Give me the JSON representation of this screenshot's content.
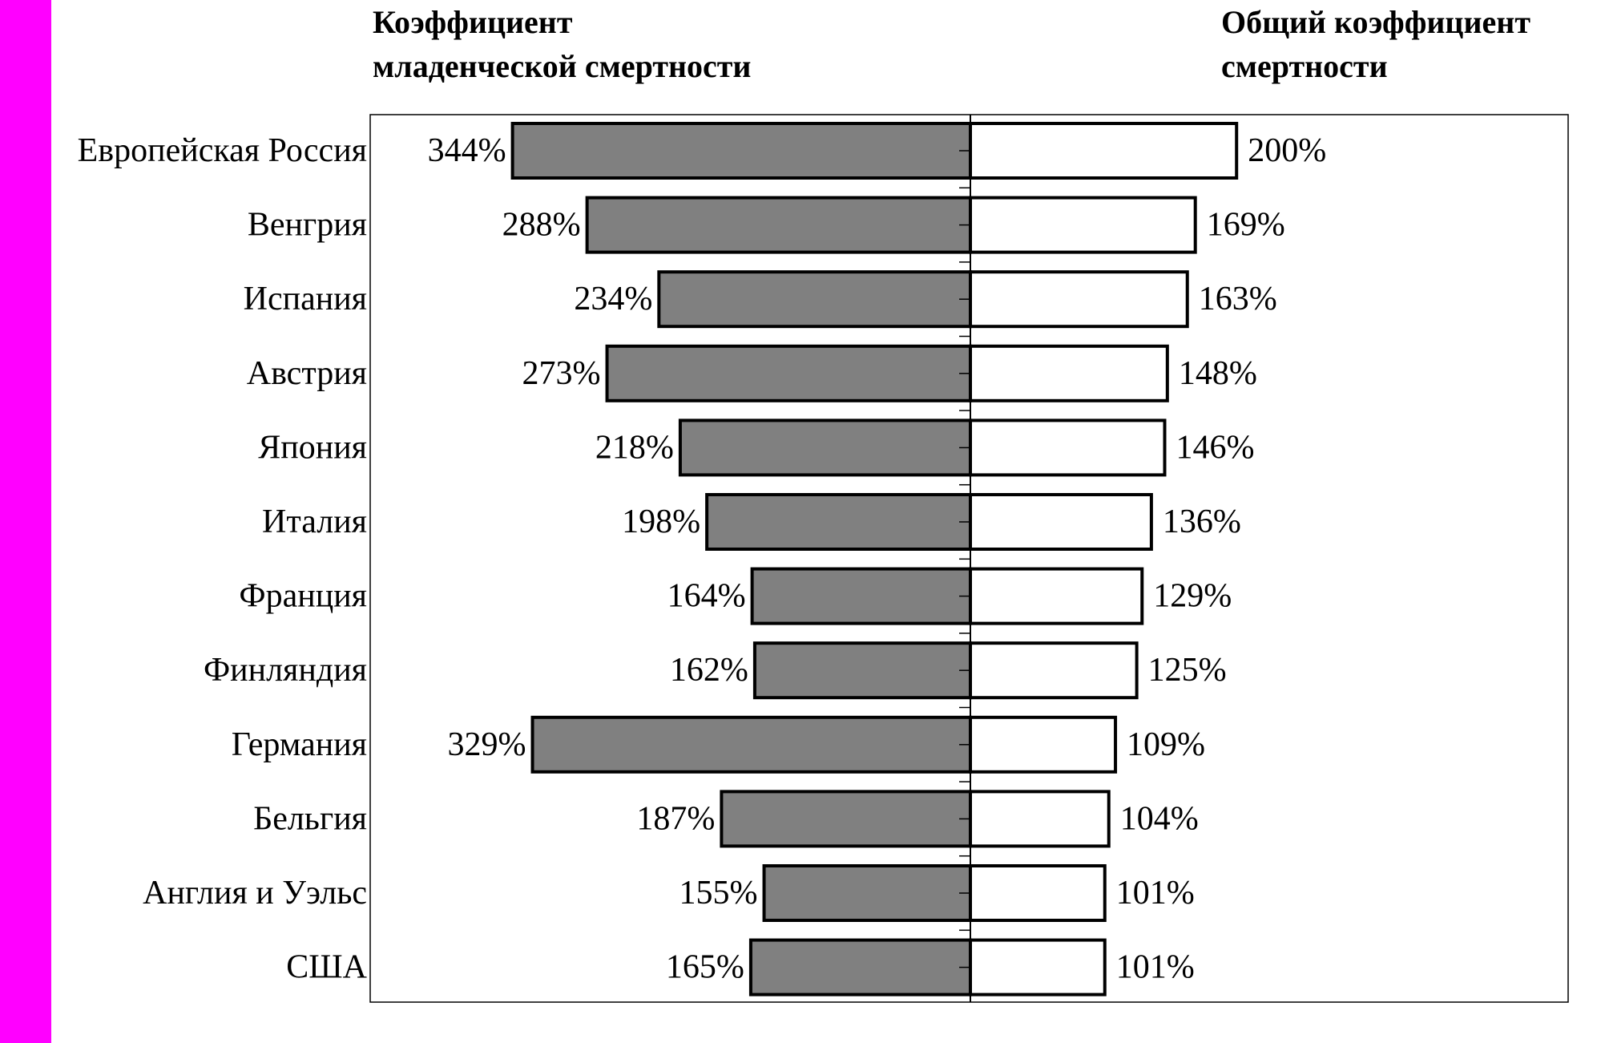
{
  "colors": {
    "side_strip": "#ff00ff",
    "infant_bar_fill": "#808080",
    "general_bar_fill": "#ffffff",
    "bar_stroke": "#000000",
    "frame": "#000000"
  },
  "chart_data": {
    "type": "bar",
    "orientation": "horizontal-diverging",
    "grid": false,
    "legend": "none",
    "left_title": [
      "Коэффициент",
      "младенческой смертности"
    ],
    "right_title": [
      "Общий коэффициент",
      "смертности"
    ],
    "categories": [
      "Европейская Россия",
      "Венгрия",
      "Испания",
      "Австрия",
      "Япония",
      "Италия",
      "Франция",
      "Финляндия",
      "Германия",
      "Бельгия",
      "Англия и Уэльс",
      "США"
    ],
    "series": [
      {
        "values": [
          344,
          288,
          234,
          273,
          218,
          198,
          164,
          162,
          329,
          187,
          155,
          165
        ],
        "labels": [
          "344%",
          "288%",
          "234%",
          "273%",
          "218%",
          "198%",
          "164%",
          "162%",
          "329%",
          "187%",
          "155%",
          "165%"
        ]
      },
      {
        "values": [
          200,
          169,
          163,
          148,
          146,
          136,
          129,
          125,
          109,
          104,
          101,
          101
        ],
        "labels": [
          "200%",
          "169%",
          "163%",
          "148%",
          "146%",
          "136%",
          "129%",
          "125%",
          "109%",
          "104%",
          "101%",
          "101%"
        ]
      }
    ]
  }
}
